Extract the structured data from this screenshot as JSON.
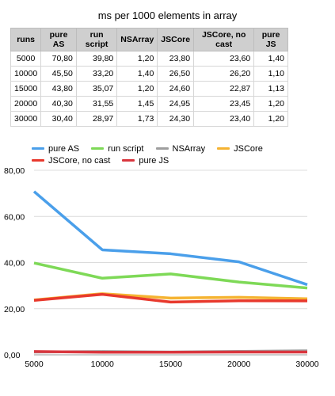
{
  "table": {
    "title": "ms per 1000 elements in array",
    "headers": [
      "runs",
      "pure AS",
      "run script",
      "NSArray",
      "JSCore",
      "JSCore, no cast",
      "pure JS"
    ],
    "rows": [
      [
        "5000",
        "70,80",
        "39,80",
        "1,20",
        "23,80",
        "23,60",
        "1,40"
      ],
      [
        "10000",
        "45,50",
        "33,20",
        "1,40",
        "26,50",
        "26,20",
        "1,10"
      ],
      [
        "15000",
        "43,80",
        "35,07",
        "1,20",
        "24,60",
        "22,87",
        "1,13"
      ],
      [
        "20000",
        "40,30",
        "31,55",
        "1,45",
        "24,95",
        "23,45",
        "1,20"
      ],
      [
        "30000",
        "30,40",
        "28,97",
        "1,73",
        "24,30",
        "23,40",
        "1,20"
      ]
    ]
  },
  "chart_data": {
    "type": "line",
    "categories": [
      "5000",
      "10000",
      "15000",
      "20000",
      "30000"
    ],
    "series": [
      {
        "name": "pure AS",
        "color": "#4a9fea",
        "values": [
          70.8,
          45.5,
          43.8,
          40.3,
          30.4
        ]
      },
      {
        "name": "run script",
        "color": "#7ed957",
        "values": [
          39.8,
          33.2,
          35.07,
          31.55,
          28.97
        ]
      },
      {
        "name": "NSArray",
        "color": "#9e9e9e",
        "values": [
          1.2,
          1.4,
          1.2,
          1.45,
          1.73
        ]
      },
      {
        "name": "JSCore",
        "color": "#f5b331",
        "values": [
          23.8,
          26.5,
          24.6,
          24.95,
          24.3
        ]
      },
      {
        "name": "JSCore, no cast",
        "color": "#e8392d",
        "values": [
          23.6,
          26.2,
          22.87,
          23.45,
          23.4
        ]
      },
      {
        "name": "pure JS",
        "color": "#d9363e",
        "values": [
          1.4,
          1.1,
          1.13,
          1.2,
          1.2
        ]
      }
    ],
    "ylim": [
      0,
      80
    ],
    "yticks": [
      "0,00",
      "20,00",
      "40,00",
      "60,00",
      "80,00"
    ],
    "grid": true,
    "legend_position": "top-left"
  }
}
